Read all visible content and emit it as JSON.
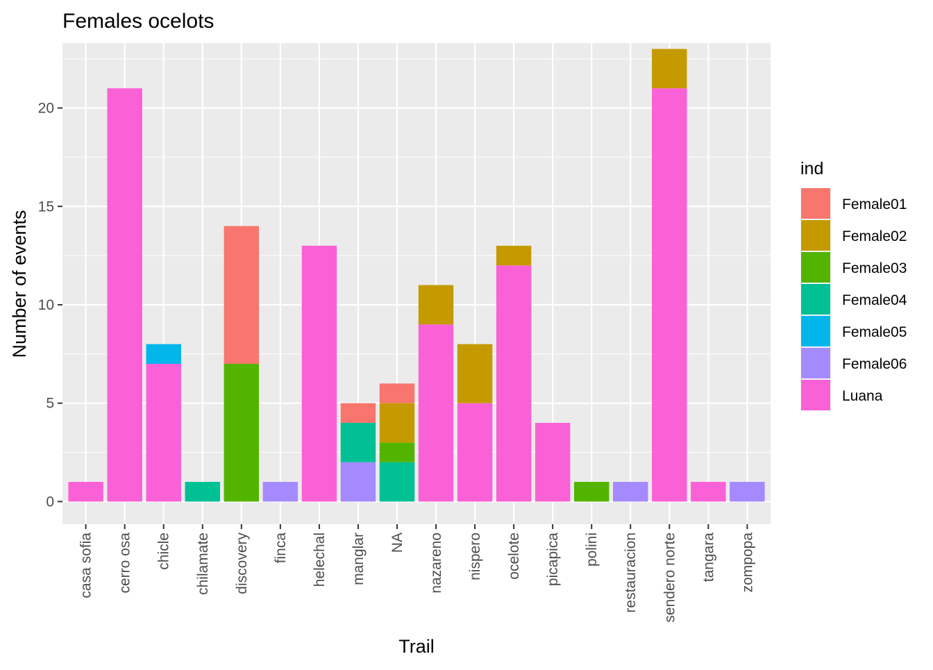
{
  "chart_data": {
    "type": "bar",
    "stacked": true,
    "title": "Females ocelots",
    "xlabel": "Trail",
    "ylabel": "Number of events",
    "ylim": [
      -1.15,
      23.3
    ],
    "yticks": [
      0,
      5,
      10,
      15,
      20
    ],
    "grid": true,
    "legend": {
      "title": "ind",
      "position": "right",
      "items": [
        {
          "name": "Female01",
          "color": "#F8766D"
        },
        {
          "name": "Female02",
          "color": "#C49A00"
        },
        {
          "name": "Female03",
          "color": "#53B400"
        },
        {
          "name": "Female04",
          "color": "#00C094"
        },
        {
          "name": "Female05",
          "color": "#00B6EB"
        },
        {
          "name": "Female06",
          "color": "#A58AFF"
        },
        {
          "name": "Luana",
          "color": "#FB61D7"
        }
      ]
    },
    "categories": [
      "casa sofia",
      "cerro osa",
      "chicle",
      "chilamate",
      "discovery",
      "finca",
      "helechal",
      "manglar",
      "NA",
      "nazareno",
      "nispero",
      "ocelote",
      "picapica",
      "polini",
      "restauracion",
      "sendero norte",
      "tangara",
      "zompopa"
    ],
    "series": [
      {
        "name": "Female01",
        "values": [
          0,
          0,
          0,
          0,
          7,
          0,
          0,
          1,
          1,
          0,
          0,
          0,
          0,
          0,
          0,
          0,
          0,
          0
        ]
      },
      {
        "name": "Female02",
        "values": [
          0,
          0,
          0,
          0,
          0,
          0,
          0,
          0,
          2,
          2,
          3,
          1,
          0,
          0,
          0,
          2,
          0,
          0
        ]
      },
      {
        "name": "Female03",
        "values": [
          0,
          0,
          0,
          0,
          7,
          0,
          0,
          0,
          1,
          0,
          0,
          0,
          0,
          1,
          0,
          0,
          0,
          0
        ]
      },
      {
        "name": "Female04",
        "values": [
          0,
          0,
          0,
          1,
          0,
          0,
          0,
          2,
          2,
          0,
          0,
          0,
          0,
          0,
          0,
          0,
          0,
          0
        ]
      },
      {
        "name": "Female05",
        "values": [
          0,
          0,
          1,
          0,
          0,
          0,
          0,
          0,
          0,
          0,
          0,
          0,
          0,
          0,
          0,
          0,
          0,
          0
        ]
      },
      {
        "name": "Female06",
        "values": [
          0,
          0,
          0,
          0,
          0,
          1,
          0,
          2,
          0,
          0,
          0,
          0,
          0,
          0,
          1,
          0,
          0,
          1
        ]
      },
      {
        "name": "Luana",
        "values": [
          1,
          21,
          7,
          0,
          0,
          0,
          13,
          0,
          0,
          9,
          5,
          12,
          4,
          0,
          0,
          21,
          1,
          0
        ]
      }
    ]
  }
}
